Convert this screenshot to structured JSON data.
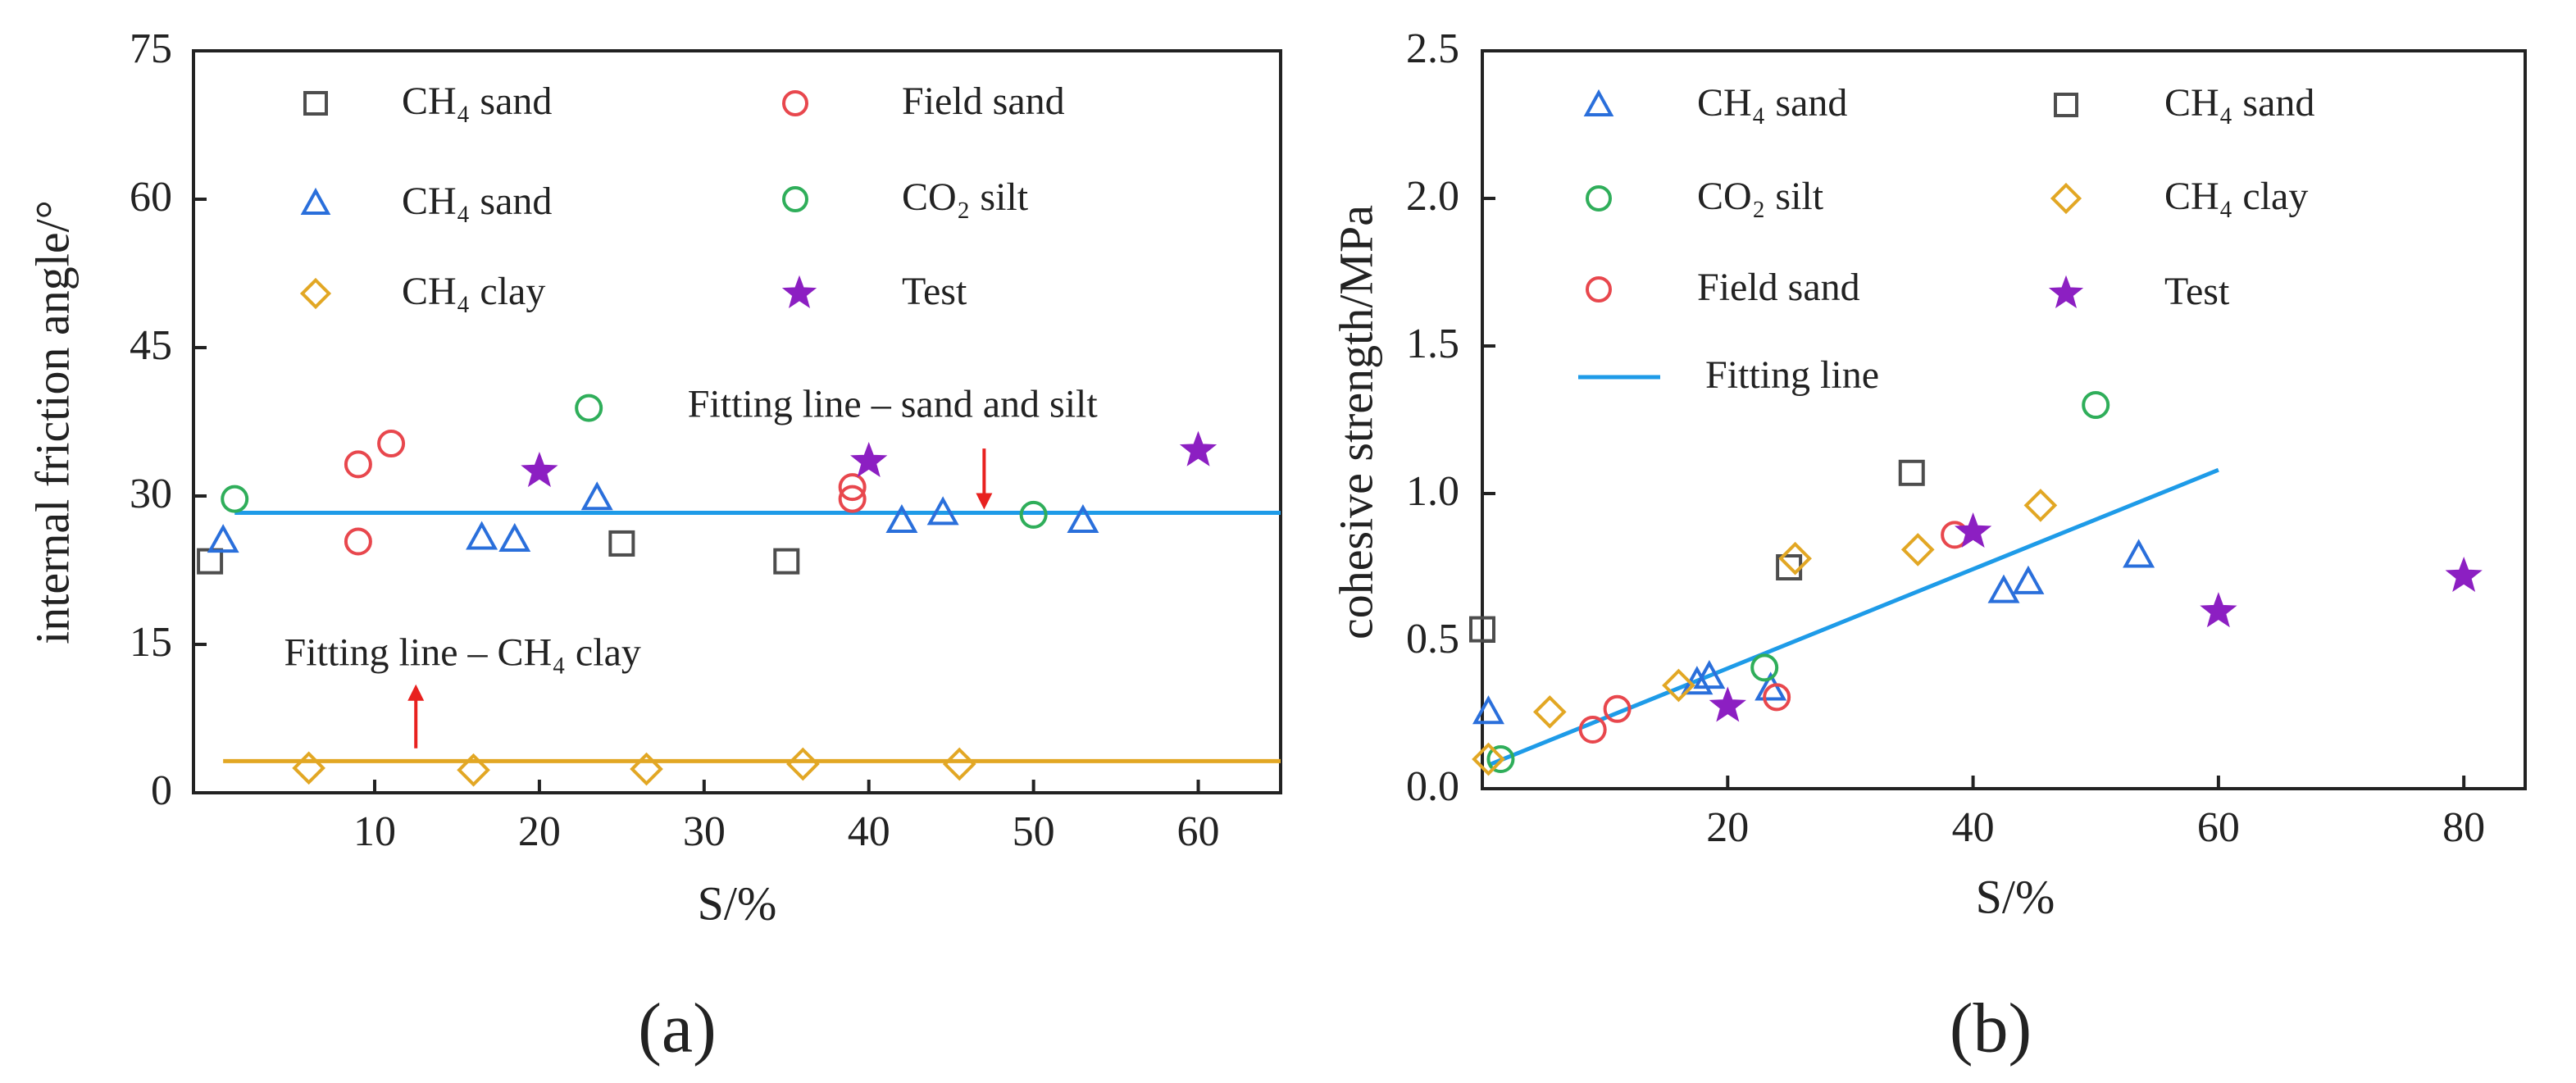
{
  "chart_data": [
    {
      "type": "scatter",
      "panel_label": "(a)",
      "xlabel": "S/%",
      "ylabel": "internal friction angle/°",
      "xlim": [
        -1,
        65
      ],
      "ylim": [
        0,
        75
      ],
      "xticks": [
        10,
        20,
        30,
        40,
        50,
        60
      ],
      "yticks": [
        0,
        15,
        30,
        45,
        60,
        75
      ],
      "legend": [
        {
          "label": "CH₄ sand",
          "series": "ch4_sand_a"
        },
        {
          "label": "Field sand",
          "series": "field_sand"
        },
        {
          "label": "CH₄ sand",
          "series": "ch4_sand_b"
        },
        {
          "label": "CO₂ silt",
          "series": "co2_silt"
        },
        {
          "label": "CH₄ clay",
          "series": "ch4_clay"
        },
        {
          "label": "Test",
          "series": "test"
        }
      ],
      "series": [
        {
          "id": "ch4_sand_a",
          "marker": "square",
          "color": "#4d4d4d",
          "points": [
            [
              0,
              23.4
            ],
            [
              25,
              25.2
            ],
            [
              35,
              23.4
            ]
          ]
        },
        {
          "id": "field_sand",
          "marker": "circle",
          "color": "#e8474d",
          "points": [
            [
              9,
              33.2
            ],
            [
              9,
              25.4
            ],
            [
              11,
              35.3
            ],
            [
              39,
              29.7
            ],
            [
              39,
              30.9
            ]
          ]
        },
        {
          "id": "ch4_sand_b",
          "marker": "triangle",
          "color": "#2a6fdb",
          "points": [
            [
              0.8,
              25.5
            ],
            [
              16.5,
              25.8
            ],
            [
              18.5,
              25.6
            ],
            [
              23.5,
              29.8
            ],
            [
              42,
              27.5
            ],
            [
              44.5,
              28.3
            ],
            [
              53,
              27.5
            ]
          ]
        },
        {
          "id": "co2_silt",
          "marker": "circle",
          "color": "#2fae5a",
          "points": [
            [
              1.5,
              29.7
            ],
            [
              23,
              38.9
            ],
            [
              50,
              28.1
            ]
          ]
        },
        {
          "id": "ch4_clay",
          "marker": "diamond",
          "color": "#e2a724",
          "points": [
            [
              6,
              2.5
            ],
            [
              16,
              2.3
            ],
            [
              26.5,
              2.4
            ],
            [
              36,
              2.9
            ],
            [
              45.5,
              2.9
            ]
          ]
        },
        {
          "id": "test",
          "marker": "star",
          "color": "#8c1fc2",
          "points": [
            [
              20,
              32.5
            ],
            [
              40,
              33.5
            ],
            [
              60,
              34.6
            ]
          ]
        }
      ],
      "lines": [
        {
          "id": "fit_sand_silt",
          "color": "#1e9be8",
          "points": [
            [
              1.5,
              28.3
            ],
            [
              65,
              28.3
            ]
          ]
        },
        {
          "id": "fit_clay",
          "color": "#e2a724",
          "points": [
            [
              0.8,
              3.2
            ],
            [
              65,
              3.2
            ]
          ]
        }
      ],
      "annotations": [
        {
          "id": "ann_sand_silt",
          "text": "Fitting line – sand and silt",
          "text_x": 29,
          "text_y": 38.9,
          "arrow_x": 47,
          "arrow_from": 34.8,
          "arrow_to": 29.3,
          "direction": "down"
        },
        {
          "id": "ann_clay",
          "text": "Fitting line – CH₄ clay",
          "text_x": 4.5,
          "text_y": 13.8,
          "arrow_x": 12.5,
          "arrow_from": 4.5,
          "arrow_to": 10.3,
          "direction": "up"
        }
      ]
    },
    {
      "type": "scatter",
      "panel_label": "(b)",
      "xlabel": "S/%",
      "ylabel": "cohesive strength/MPa",
      "xlim": [
        0,
        85
      ],
      "ylim": [
        0,
        2.5
      ],
      "xticks": [
        20,
        40,
        60,
        80
      ],
      "yticks": [
        0.0,
        0.5,
        1.0,
        1.5,
        2.0,
        2.5
      ],
      "ytick_labels": [
        "0.0",
        "0.5",
        "1.0",
        "1.5",
        "2.0",
        "2.5"
      ],
      "legend": [
        {
          "label": "CH₄ sand",
          "series": "ch4_sand_tri"
        },
        {
          "label": "CH₄ sand",
          "series": "ch4_sand_sq"
        },
        {
          "label": "CO₂ silt",
          "series": "co2_silt"
        },
        {
          "label": "CH₄ clay",
          "series": "ch4_clay"
        },
        {
          "label": "Field sand",
          "series": "field_sand"
        },
        {
          "label": "Test",
          "series": "test"
        },
        {
          "label": "Fitting line",
          "series": "fit"
        }
      ],
      "series": [
        {
          "id": "ch4_sand_tri",
          "marker": "triangle",
          "color": "#2a6fdb",
          "points": [
            [
              0.5,
              0.26
            ],
            [
              17.5,
              0.36
            ],
            [
              18.5,
              0.38
            ],
            [
              23.5,
              0.34
            ],
            [
              42.5,
              0.67
            ],
            [
              44.5,
              0.7
            ],
            [
              53.5,
              0.79
            ]
          ]
        },
        {
          "id": "ch4_sand_sq",
          "marker": "square",
          "color": "#4d4d4d",
          "points": [
            [
              0,
              0.54
            ],
            [
              25,
              0.75
            ],
            [
              35,
              1.07
            ]
          ]
        },
        {
          "id": "co2_silt",
          "marker": "circle",
          "color": "#2fae5a",
          "points": [
            [
              1.5,
              0.1
            ],
            [
              23,
              0.41
            ],
            [
              50,
              1.3
            ]
          ]
        },
        {
          "id": "ch4_clay",
          "marker": "diamond",
          "color": "#e2a724",
          "points": [
            [
              0.5,
              0.1
            ],
            [
              5.5,
              0.26
            ],
            [
              16,
              0.35
            ],
            [
              25.5,
              0.78
            ],
            [
              35.5,
              0.81
            ],
            [
              45.5,
              0.96
            ]
          ]
        },
        {
          "id": "field_sand",
          "marker": "circle",
          "color": "#e8474d",
          "points": [
            [
              9,
              0.2
            ],
            [
              11,
              0.27
            ],
            [
              24,
              0.31
            ],
            [
              38.5,
              0.86
            ]
          ]
        },
        {
          "id": "test",
          "marker": "star",
          "color": "#8c1fc2",
          "points": [
            [
              20,
              0.28
            ],
            [
              40,
              0.87
            ],
            [
              60,
              0.6
            ],
            [
              80,
              0.72
            ]
          ]
        }
      ],
      "lines": [
        {
          "id": "fit",
          "color": "#1e9be8",
          "points": [
            [
              0.5,
              0.08
            ],
            [
              60,
              1.08
            ]
          ]
        }
      ],
      "annotations": []
    }
  ]
}
